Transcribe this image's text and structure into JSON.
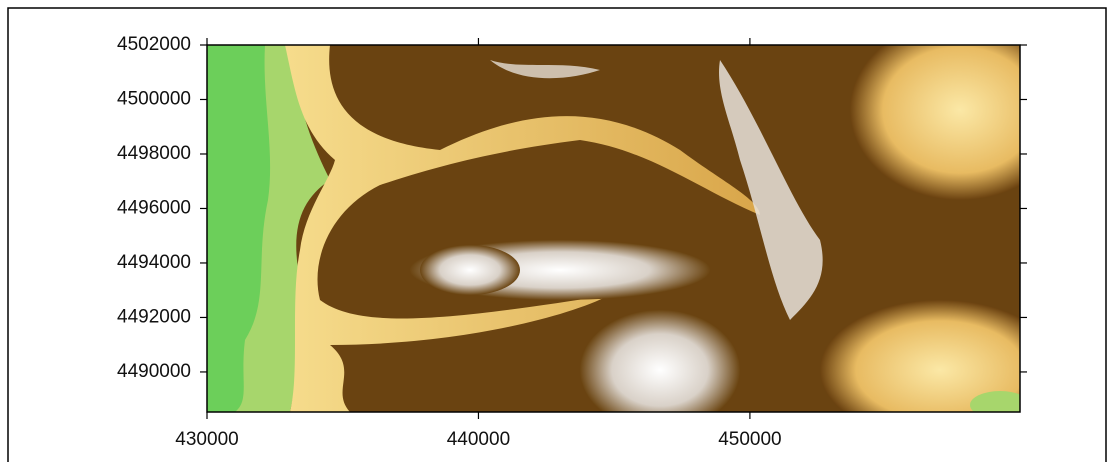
{
  "chart_data": {
    "type": "raster",
    "xlim": [
      430000,
      459950
    ],
    "ylim": [
      4488530,
      4502000
    ],
    "xticks": [
      430000,
      440000,
      450000
    ],
    "yticks": [
      4490000,
      4492000,
      4494000,
      4496000,
      4498000,
      4500000,
      4502000
    ]
  }
}
